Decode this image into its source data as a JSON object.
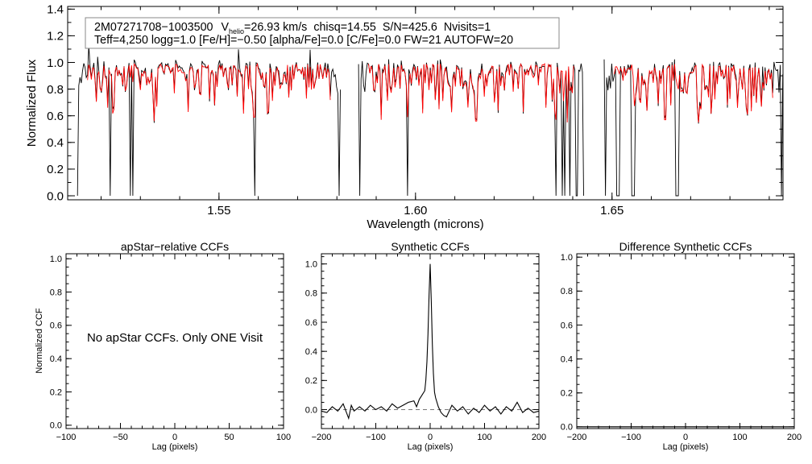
{
  "chart_data": [
    {
      "id": "spectrum",
      "type": "line",
      "header": {
        "star_id": "2M07271708−1003500",
        "v_label": "V",
        "v_sub": "helio",
        "v_text": "=26.93 km/s",
        "chisq": "chisq=14.55",
        "snr": "S/N=425.6",
        "nvisits": "Nvisits=1",
        "line2": "Teff=4,250 logg=1.0 [Fe/H]=−0.50 [alpha/Fe]=0.0 [C/Fe]=0.0 FW=21 AUTOFW=20"
      },
      "xlabel": "Wavelength (microns)",
      "ylabel": "Normalized Flux",
      "xlim": [
        1.5115,
        1.6935
      ],
      "ylim": [
        -0.03,
        1.42
      ],
      "xticks": [
        1.55,
        1.6,
        1.65
      ],
      "xtick_labels": [
        "1.55",
        "1.60",
        "1.65"
      ],
      "yticks": [
        0.0,
        0.2,
        0.4,
        0.6,
        0.8,
        1.0,
        1.2,
        1.4
      ],
      "ytick_labels": [
        "0.0",
        "0.2",
        "0.4",
        "0.6",
        "0.8",
        "1.0",
        "1.2",
        "1.4"
      ],
      "chips": [
        [
          1.514,
          1.581
        ],
        [
          1.5855,
          1.643
        ],
        [
          1.648,
          1.6935
        ]
      ],
      "masked_pixels_at_zero": [
        1.514,
        1.5222,
        1.5275,
        1.5281,
        1.559,
        1.5806,
        1.5857,
        1.598,
        1.6358,
        1.6373,
        1.6381,
        1.6392,
        1.641,
        1.6428,
        1.6482,
        1.6511,
        1.6517,
        1.6552,
        1.6557,
        1.6664,
        1.667,
        1.693
      ],
      "strong_absorption_lines": [
        [
          1.5335,
          0.57
        ],
        [
          1.559,
          0.6
        ],
        [
          1.5855,
          0.62
        ],
        [
          1.5912,
          0.58
        ],
        [
          1.598,
          0.6
        ],
        [
          1.6155,
          0.57
        ],
        [
          1.6358,
          0.58
        ],
        [
          1.6386,
          0.56
        ],
        [
          1.6408,
          0.55
        ],
        [
          1.6635,
          0.58
        ],
        [
          1.672,
          0.56
        ]
      ],
      "series": [
        {
          "name": "observed",
          "color": "#000000",
          "continuum": 1.0
        },
        {
          "name": "model",
          "color": "#ff0000",
          "continuum": 0.99
        }
      ]
    },
    {
      "id": "apstar-ccf",
      "type": "line",
      "title": "apStar−relative CCFs",
      "xlabel": "Lag (pixels)",
      "ylabel": "Normalized CCF",
      "xlim": [
        -100,
        100
      ],
      "ylim": [
        -0.02,
        1.03
      ],
      "xticks": [
        -100,
        -50,
        0,
        50,
        100
      ],
      "xtick_labels": [
        "−100",
        "−50",
        "0",
        "50",
        "100"
      ],
      "yticks": [
        0.0,
        0.2,
        0.4,
        0.6,
        0.8,
        1.0
      ],
      "ytick_labels": [
        "0.0",
        "0.2",
        "0.4",
        "0.6",
        "0.8",
        "1.0"
      ],
      "message": "No apStar CCFs.  Only ONE Visit",
      "series": []
    },
    {
      "id": "synthetic-ccf",
      "type": "line",
      "title": "Synthetic CCFs",
      "xlabel": "Lag (pixels)",
      "ylabel": "",
      "xlim": [
        -200,
        200
      ],
      "ylim": [
        -0.13,
        1.07
      ],
      "xticks": [
        -200,
        -100,
        0,
        100,
        200
      ],
      "xtick_labels": [
        "−200",
        "−100",
        "0",
        "100",
        "200"
      ],
      "yticks": [
        0.0,
        0.2,
        0.4,
        0.6,
        0.8,
        1.0
      ],
      "ytick_labels": [
        "0.0",
        "0.2",
        "0.4",
        "0.6",
        "0.8",
        "1.0"
      ],
      "peak": {
        "lag": 0,
        "value": 1.0
      },
      "baseline": 0.0,
      "series": [
        {
          "name": "ccf",
          "color": "#000000",
          "x": [
            -200,
            -190,
            -180,
            -170,
            -160,
            -150,
            -145,
            -140,
            -130,
            -120,
            -110,
            -100,
            -90,
            -80,
            -70,
            -60,
            -50,
            -40,
            -30,
            -25,
            -20,
            -15,
            -10,
            -8,
            -6,
            -4,
            -2,
            0,
            2,
            4,
            6,
            8,
            10,
            15,
            20,
            25,
            30,
            40,
            50,
            60,
            70,
            80,
            90,
            100,
            110,
            120,
            130,
            140,
            150,
            160,
            170,
            180,
            190,
            200
          ],
          "y": [
            -0.01,
            -0.02,
            0.02,
            -0.01,
            0.04,
            -0.06,
            0.03,
            -0.01,
            0.02,
            -0.01,
            0.03,
            0.0,
            0.02,
            -0.01,
            0.04,
            0.01,
            0.03,
            0.05,
            0.06,
            0.02,
            0.07,
            0.1,
            0.13,
            0.2,
            0.33,
            0.52,
            0.78,
            1.0,
            0.74,
            0.45,
            0.25,
            0.12,
            0.08,
            0.02,
            -0.02,
            -0.04,
            -0.05,
            0.03,
            -0.01,
            0.02,
            -0.03,
            0.01,
            -0.02,
            0.03,
            -0.01,
            0.02,
            -0.03,
            0.02,
            -0.01,
            0.05,
            -0.02,
            0.01,
            -0.02,
            -0.01
          ]
        }
      ]
    },
    {
      "id": "difference-ccf",
      "type": "line",
      "title": "Difference Synthetic CCFs",
      "xlabel": "Lag (pixels)",
      "ylabel": "",
      "xlim": [
        -200,
        200
      ],
      "ylim": [
        -0.01,
        1.02
      ],
      "xticks": [
        -200,
        -100,
        0,
        100,
        200
      ],
      "xtick_labels": [
        "−200",
        "−100",
        "0",
        "100",
        "200"
      ],
      "yticks": [
        0.0,
        0.2,
        0.4,
        0.6,
        0.8,
        1.0
      ],
      "ytick_labels": [
        "0.0",
        "0.2",
        "0.4",
        "0.6",
        "0.8",
        "1.0"
      ],
      "series": [
        {
          "name": "difference",
          "color": "#000000",
          "x": [
            -200,
            200
          ],
          "y": [
            0.0,
            0.0
          ]
        }
      ]
    }
  ]
}
